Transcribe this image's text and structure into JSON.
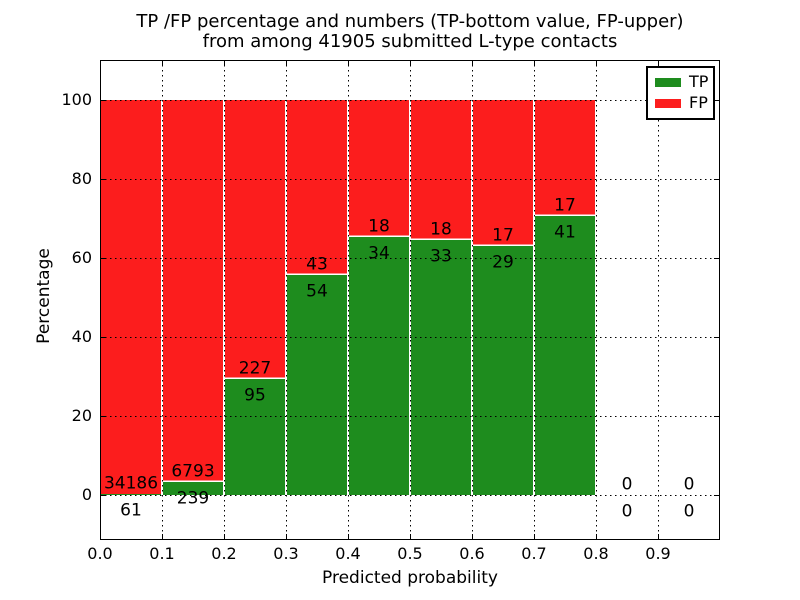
{
  "title": {
    "line1": "TP /FP percentage and numbers (TP-bottom value, FP-upper)",
    "line2": "from among 41905 submitted L-type contacts"
  },
  "chart_data": {
    "type": "bar",
    "stacked": true,
    "normalized": "each bar scaled to 100%",
    "title_lines": [
      "TP /FP percentage and numbers (TP-bottom value, FP-upper)",
      "from among 41905 submitted L-type contacts"
    ],
    "xlabel": "Predicted probability",
    "ylabel": "Percentage",
    "xlim": [
      0.0,
      1.0
    ],
    "ylim": [
      -11.4,
      110.2
    ],
    "grid": "dotted",
    "x_tick_labels": [
      "0.0",
      "0.1",
      "0.2",
      "0.3",
      "0.4",
      "0.5",
      "0.6",
      "0.7",
      "0.8",
      "0.9"
    ],
    "y_tick_labels": [
      "0",
      "20",
      "40",
      "60",
      "80",
      "100"
    ],
    "total_contacts": 41905,
    "colors": {
      "tp": "#1e8c1e",
      "fp": "#fc1d1d"
    },
    "legend": {
      "position": "upper right",
      "entries": [
        {
          "label": "TP",
          "color": "#1e8c1e"
        },
        {
          "label": "FP",
          "color": "#fc1d1d"
        }
      ]
    },
    "bins": [
      {
        "x_start": 0.0,
        "x_end": 0.1,
        "tp": 61,
        "fp": 34186
      },
      {
        "x_start": 0.1,
        "x_end": 0.2,
        "tp": 239,
        "fp": 6793
      },
      {
        "x_start": 0.2,
        "x_end": 0.3,
        "tp": 95,
        "fp": 227
      },
      {
        "x_start": 0.3,
        "x_end": 0.4,
        "tp": 54,
        "fp": 43
      },
      {
        "x_start": 0.4,
        "x_end": 0.5,
        "tp": 34,
        "fp": 18
      },
      {
        "x_start": 0.5,
        "x_end": 0.6,
        "tp": 33,
        "fp": 18
      },
      {
        "x_start": 0.6,
        "x_end": 0.7,
        "tp": 29,
        "fp": 17
      },
      {
        "x_start": 0.7,
        "x_end": 0.8,
        "tp": 41,
        "fp": 17
      },
      {
        "x_start": 0.8,
        "x_end": 0.9,
        "tp": 0,
        "fp": 0
      },
      {
        "x_start": 0.9,
        "x_end": 1.0,
        "tp": 0,
        "fp": 0
      }
    ]
  }
}
